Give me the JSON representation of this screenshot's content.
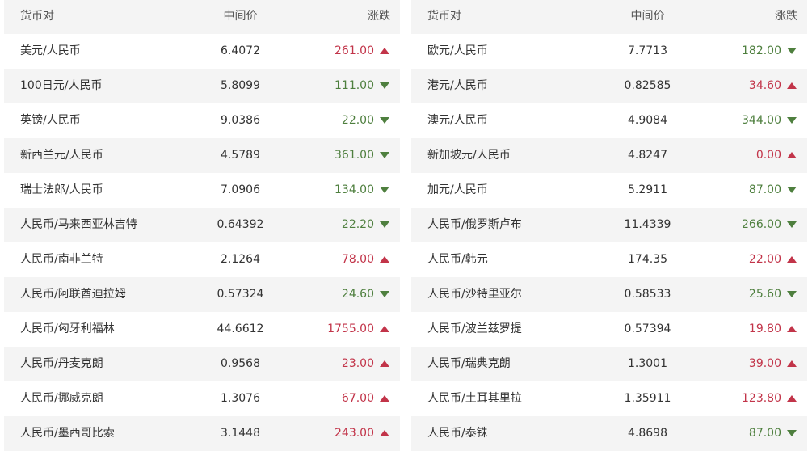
{
  "colors": {
    "up": "#c23449",
    "down": "#4e7f3e"
  },
  "headers": {
    "pair": "货币对",
    "mid": "中间价",
    "change": "涨跌"
  },
  "left": [
    {
      "pair": "美元/人民币",
      "mid": "6.4072",
      "change": "261.00",
      "dir": "up"
    },
    {
      "pair": "100日元/人民币",
      "mid": "5.8099",
      "change": "111.00",
      "dir": "down"
    },
    {
      "pair": "英镑/人民币",
      "mid": "9.0386",
      "change": "22.00",
      "dir": "down"
    },
    {
      "pair": "新西兰元/人民币",
      "mid": "4.5789",
      "change": "361.00",
      "dir": "down"
    },
    {
      "pair": "瑞士法郎/人民币",
      "mid": "7.0906",
      "change": "134.00",
      "dir": "down"
    },
    {
      "pair": "人民币/马来西亚林吉特",
      "mid": "0.64392",
      "change": "22.20",
      "dir": "down"
    },
    {
      "pair": "人民币/南非兰特",
      "mid": "2.1264",
      "change": "78.00",
      "dir": "up"
    },
    {
      "pair": "人民币/阿联酋迪拉姆",
      "mid": "0.57324",
      "change": "24.60",
      "dir": "down"
    },
    {
      "pair": "人民币/匈牙利福林",
      "mid": "44.6612",
      "change": "1755.00",
      "dir": "up"
    },
    {
      "pair": "人民币/丹麦克朗",
      "mid": "0.9568",
      "change": "23.00",
      "dir": "up"
    },
    {
      "pair": "人民币/挪威克朗",
      "mid": "1.3076",
      "change": "67.00",
      "dir": "up"
    },
    {
      "pair": "人民币/墨西哥比索",
      "mid": "3.1448",
      "change": "243.00",
      "dir": "up"
    }
  ],
  "right": [
    {
      "pair": "欧元/人民币",
      "mid": "7.7713",
      "change": "182.00",
      "dir": "down"
    },
    {
      "pair": "港元/人民币",
      "mid": "0.82585",
      "change": "34.60",
      "dir": "up"
    },
    {
      "pair": "澳元/人民币",
      "mid": "4.9084",
      "change": "344.00",
      "dir": "down"
    },
    {
      "pair": "新加坡元/人民币",
      "mid": "4.8247",
      "change": "0.00",
      "dir": "up"
    },
    {
      "pair": "加元/人民币",
      "mid": "5.2911",
      "change": "87.00",
      "dir": "down"
    },
    {
      "pair": "人民币/俄罗斯卢布",
      "mid": "11.4339",
      "change": "266.00",
      "dir": "down"
    },
    {
      "pair": "人民币/韩元",
      "mid": "174.35",
      "change": "22.00",
      "dir": "up"
    },
    {
      "pair": "人民币/沙特里亚尔",
      "mid": "0.58533",
      "change": "25.60",
      "dir": "down"
    },
    {
      "pair": "人民币/波兰兹罗提",
      "mid": "0.57394",
      "change": "19.80",
      "dir": "up"
    },
    {
      "pair": "人民币/瑞典克朗",
      "mid": "1.3001",
      "change": "39.00",
      "dir": "up"
    },
    {
      "pair": "人民币/土耳其里拉",
      "mid": "1.35911",
      "change": "123.80",
      "dir": "up"
    },
    {
      "pair": "人民币/泰铢",
      "mid": "4.8698",
      "change": "87.00",
      "dir": "down"
    }
  ]
}
